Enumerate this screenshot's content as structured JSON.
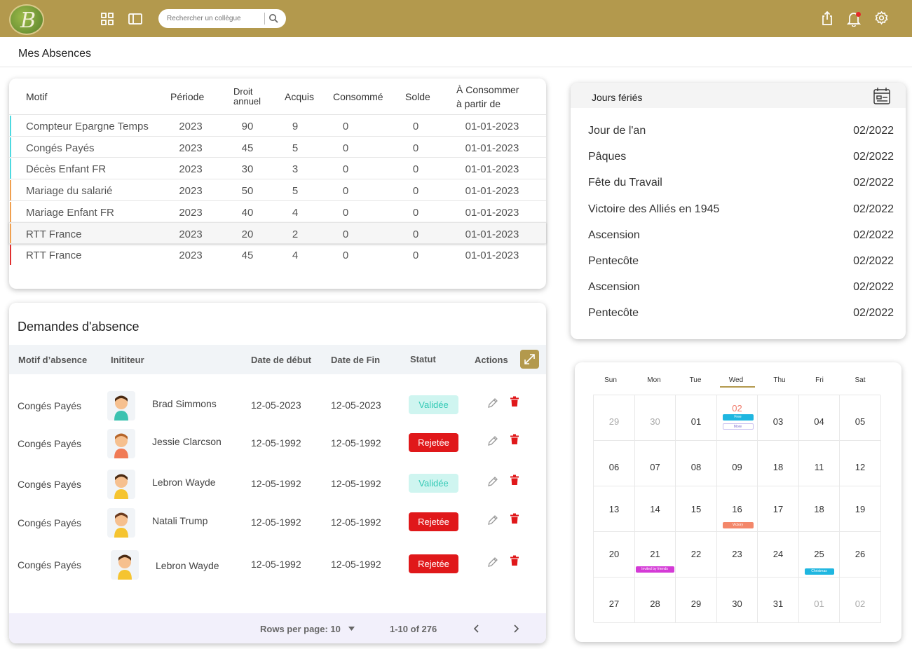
{
  "colors": {
    "brand": "#b3994d",
    "valid": "#32c9b5",
    "rejected": "#e0181a"
  },
  "topbar": {
    "logo_letter": "B",
    "search_placeholder": "Rechercher un collègue",
    "icons": [
      "grid-icon",
      "sidebar-toggle-icon",
      "search-icon",
      "share-icon",
      "bell-icon",
      "gear-icon"
    ]
  },
  "page": {
    "title": "Mes Absences"
  },
  "absences": {
    "headers": {
      "motif": "Motif",
      "periode": "Période",
      "droit_1": "Droit",
      "droit_2": "annuel",
      "acquis": "Acquis",
      "consomme": "Consommé",
      "solde": "Solde",
      "consommer_1": "À Consommer",
      "consommer_2": "à partir de"
    },
    "rows": [
      {
        "motif": "Compteur Epargne Temps",
        "periode": "2023",
        "droit": "90",
        "acquis": "9",
        "consomme": "0",
        "solde": "0",
        "date": "01-01-2023",
        "color": "#4dd9e0"
      },
      {
        "motif": "Congés Payés",
        "periode": "2023",
        "droit": "45",
        "acquis": "5",
        "consomme": "0",
        "solde": "0",
        "date": "01-01-2023",
        "color": "#4dd9e0"
      },
      {
        "motif": "Décès Enfant FR",
        "periode": "2023",
        "droit": "30",
        "acquis": "3",
        "consomme": "0",
        "solde": "0",
        "date": "01-01-2023",
        "color": "#4dd9e0"
      },
      {
        "motif": "Mariage du salarié",
        "periode": "2023",
        "droit": "50",
        "acquis": "5",
        "consomme": "0",
        "solde": "0",
        "date": "01-01-2023",
        "color": "#f0a050"
      },
      {
        "motif": "Mariage Enfant FR",
        "periode": "2023",
        "droit": "40",
        "acquis": "4",
        "consomme": "0",
        "solde": "0",
        "date": "01-01-2023",
        "color": "#f0a050"
      },
      {
        "motif": "RTT France",
        "periode": "2023",
        "droit": "20",
        "acquis": "2",
        "consomme": "0",
        "solde": "0",
        "date": "01-01-2023",
        "color": "#f0a050"
      },
      {
        "motif": "RTT France",
        "periode": "2023",
        "droit": "45",
        "acquis": "4",
        "consomme": "0",
        "solde": "0",
        "date": "01-01-2023",
        "color": "#e03030"
      }
    ]
  },
  "requests": {
    "title": "Demandes d'absence",
    "headers": {
      "motif": "Motif d’absence",
      "initiateur": "Inititeur",
      "debut": "Date de début",
      "fin": "Date de Fin",
      "statut": "Statut",
      "actions": "Actions"
    },
    "rows": [
      {
        "motif": "Congés Payés",
        "name": "Brad Simmons",
        "debut": "12-05-2023",
        "fin": "12-05-2023",
        "statut": "Validée",
        "kind": "ok"
      },
      {
        "motif": "Congés Payés",
        "name": "Jessie Clarcson",
        "debut": "12-05-1992",
        "fin": "12-05-1992",
        "statut": "Rejetée",
        "kind": "ko"
      },
      {
        "motif": "Congés Payés",
        "name": "Lebron Wayde",
        "debut": "12-05-1992",
        "fin": "12-05-1992",
        "statut": "Validée",
        "kind": "ok"
      },
      {
        "motif": "Congés Payés",
        "name": "Natali Trump",
        "debut": "12-05-1992",
        "fin": "12-05-1992",
        "statut": "Rejetée",
        "kind": "ko"
      },
      {
        "motif": "Congés Payés",
        "name": "Lebron Wayde",
        "debut": "12-05-1992",
        "fin": "12-05-1992",
        "statut": "Rejetée",
        "kind": "ko"
      }
    ],
    "footer": {
      "rows_per_page": "Rows per page: 10",
      "range": "1-10 of 276"
    }
  },
  "holidays": {
    "title": "Jours fériés",
    "items": [
      {
        "name": "Jour de l'an",
        "date": "02/2022"
      },
      {
        "name": "Pâques",
        "date": "02/2022"
      },
      {
        "name": "Fête du Travail",
        "date": "02/2022"
      },
      {
        "name": "Victoire des Alliés en 1945",
        "date": "02/2022"
      },
      {
        "name": "Ascension",
        "date": "02/2022"
      },
      {
        "name": "Pentecôte",
        "date": "02/2022"
      },
      {
        "name": "Ascension",
        "date": "02/2022"
      },
      {
        "name": "Pentecôte",
        "date": "02/2022"
      }
    ]
  },
  "calendar": {
    "days": [
      "Sun",
      "Mon",
      "Tue",
      "Wed",
      "Thu",
      "Fri",
      "Sat"
    ],
    "weeks": [
      [
        "29",
        "30",
        "01",
        "02",
        "03",
        "04",
        "05"
      ],
      [
        "06",
        "07",
        "08",
        "09",
        "18",
        "11",
        "12"
      ],
      [
        "13",
        "14",
        "15",
        "16",
        "17",
        "18",
        "19"
      ],
      [
        "20",
        "21",
        "22",
        "23",
        "24",
        "25",
        "26"
      ],
      [
        "27",
        "28",
        "29",
        "30",
        "31",
        "01",
        "02"
      ]
    ],
    "events": {
      "free": "Free",
      "more": "More",
      "victory": "Victory",
      "invited": "Invited by friends",
      "christmas": "Christmas"
    }
  }
}
